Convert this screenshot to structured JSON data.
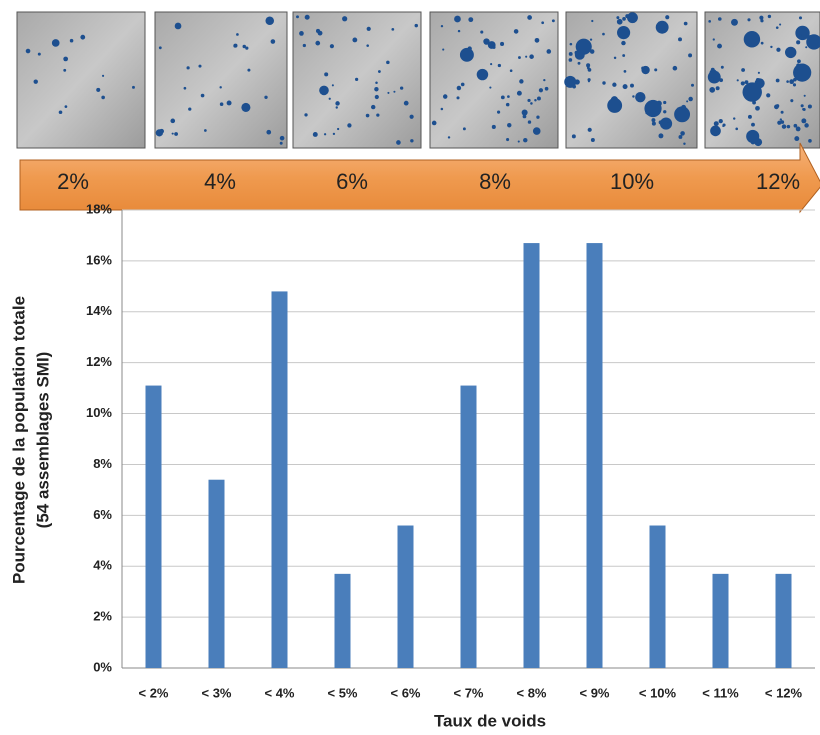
{
  "void_scale": [
    "2%",
    "4%",
    "6%",
    "8%",
    "10%",
    "12%"
  ],
  "chart_data": {
    "type": "bar",
    "y_label_lines": [
      "Pourcentage de la population totale",
      "(54 assemblages SMI)"
    ],
    "x_label": "Taux de voids",
    "categories": [
      "< 2%",
      "< 3%",
      "< 4%",
      "< 5%",
      "< 6%",
      "< 7%",
      "< 8%",
      "< 9%",
      "< 10%",
      "< 11%",
      "< 12%"
    ],
    "values": [
      11.1,
      7.4,
      14.8,
      3.7,
      5.6,
      11.1,
      16.7,
      16.7,
      5.6,
      3.7,
      3.7
    ],
    "color": "#4a7ebb",
    "ylim": [
      0,
      18
    ],
    "yticks": [
      {
        "value": 0,
        "label": "0%"
      },
      {
        "value": 2,
        "label": "2%"
      },
      {
        "value": 4,
        "label": "4%"
      },
      {
        "value": 6,
        "label": "6%"
      },
      {
        "value": 8,
        "label": "8%"
      },
      {
        "value": 10,
        "label": "10%"
      },
      {
        "value": 12,
        "label": "12%"
      },
      {
        "value": 14,
        "label": "14%"
      },
      {
        "value": 16,
        "label": "16%"
      },
      {
        "value": 18,
        "label": "18%"
      }
    ],
    "grid": true
  }
}
